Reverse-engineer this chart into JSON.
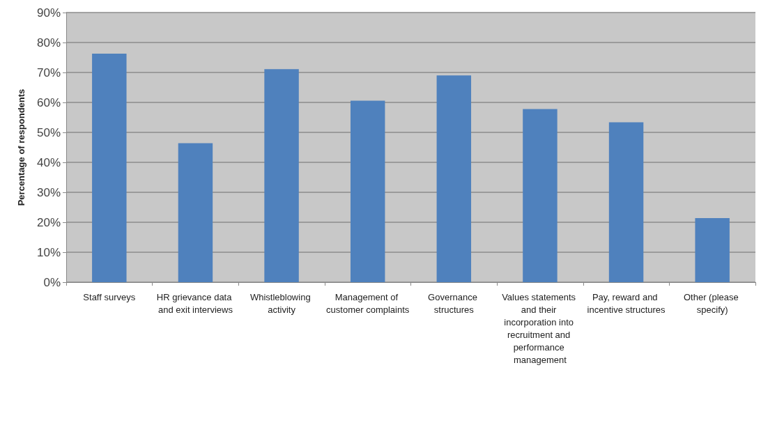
{
  "chart_data": {
    "type": "bar",
    "ylabel": "Percentage of respondents",
    "categories": [
      "Staff surveys",
      "HR grievance data and exit interviews",
      "Whistleblowing activity",
      "Management of customer complaints",
      "Governance structures",
      "Values statements and their incorporation into recruitment and performance management",
      "Pay, reward and incentive structures",
      "Other (please specify)"
    ],
    "values": [
      76.3,
      46.4,
      71.1,
      60.6,
      69.0,
      57.8,
      53.4,
      21.4
    ],
    "color": "#4f81bd",
    "ylim": [
      0,
      90
    ],
    "yticks": [
      {
        "value": 0,
        "label": "0%"
      },
      {
        "value": 10,
        "label": "10%"
      },
      {
        "value": 20,
        "label": "20%"
      },
      {
        "value": 30,
        "label": "30%"
      },
      {
        "value": 40,
        "label": "40%"
      },
      {
        "value": 50,
        "label": "50%"
      },
      {
        "value": 60,
        "label": "60%"
      },
      {
        "value": 70,
        "label": "70%"
      },
      {
        "value": 80,
        "label": "80%"
      },
      {
        "value": 90,
        "label": "90%"
      }
    ],
    "grid": "y"
  }
}
